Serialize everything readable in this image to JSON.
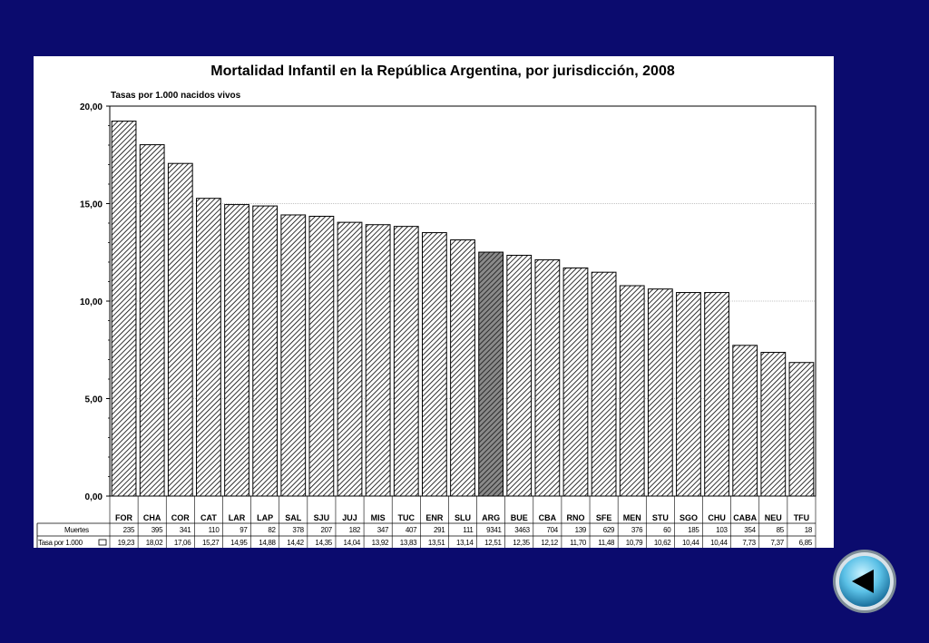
{
  "chart_data": {
    "type": "bar",
    "title": "Mortalidad Infantil en la República Argentina, por jurisdicción, 2008",
    "ylabel": "Tasas por 1.000 nacidos vivos",
    "ylim": [
      0,
      20
    ],
    "yticks": [
      "0,00",
      "5,00",
      "10,00",
      "15,00",
      "20,00"
    ],
    "ytick_values": [
      0,
      5,
      10,
      15,
      20
    ],
    "grid": true,
    "highlight_category": "ARG",
    "colors": {
      "highlight": "#555555",
      "bar_pattern": "#000000",
      "grid": "#888888"
    },
    "categories": [
      "FOR",
      "CHA",
      "COR",
      "CAT",
      "LAR",
      "LAP",
      "SAL",
      "SJU",
      "JUJ",
      "MIS",
      "TUC",
      "ENR",
      "SLU",
      "ARG",
      "BUE",
      "CBA",
      "RNO",
      "SFE",
      "MEN",
      "STU",
      "SGO",
      "CHU",
      "CABA",
      "NEU",
      "TFU"
    ],
    "values": [
      19.23,
      18.02,
      17.06,
      15.27,
      14.95,
      14.88,
      14.42,
      14.35,
      14.04,
      13.92,
      13.83,
      13.51,
      13.14,
      12.51,
      12.35,
      12.12,
      11.7,
      11.48,
      10.79,
      10.62,
      10.44,
      10.44,
      7.73,
      7.37,
      6.85
    ],
    "table": {
      "rows": [
        {
          "label": "Muertes",
          "cells": [
            "235",
            "395",
            "341",
            "110",
            "97",
            "82",
            "378",
            "207",
            "182",
            "347",
            "407",
            "291",
            "111",
            "9341",
            "3463",
            "704",
            "139",
            "629",
            "376",
            "60",
            "185",
            "103",
            "354",
            "85",
            "18"
          ]
        },
        {
          "label": "Tasa por 1.000",
          "cells": [
            "19,23",
            "18,02",
            "17,06",
            "15,27",
            "14,95",
            "14,88",
            "14,42",
            "14,35",
            "14,04",
            "13,92",
            "13,83",
            "13,51",
            "13,14",
            "12,51",
            "12,35",
            "12,12",
            "11,70",
            "11,48",
            "10,79",
            "10,62",
            "10,44",
            "10,44",
            "7,73",
            "7,37",
            "6,85"
          ]
        }
      ]
    }
  },
  "navigation": {
    "back_icon": "triangle-left-icon"
  }
}
